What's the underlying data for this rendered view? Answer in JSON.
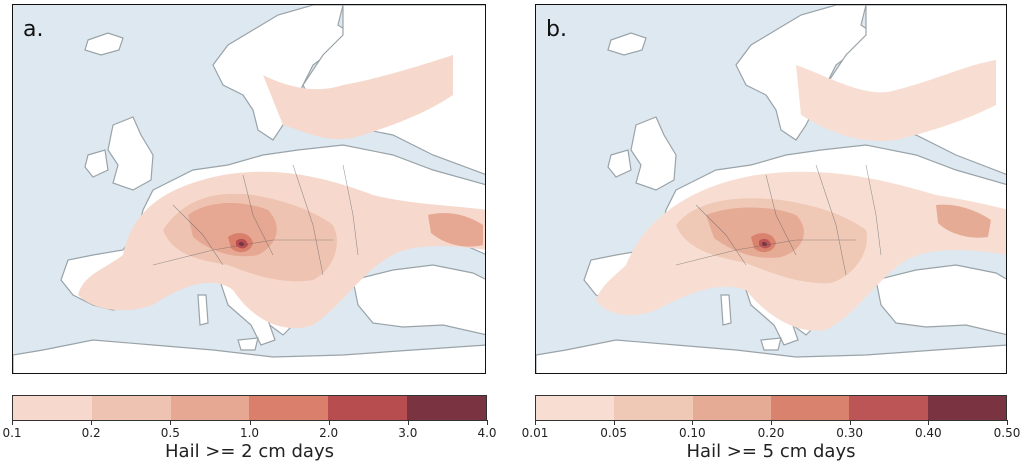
{
  "panels": [
    {
      "letter": "a.",
      "colorbar": {
        "ticks": [
          "0.1",
          "0.2",
          "0.5",
          "1.0",
          "2.0",
          "3.0",
          "4.0"
        ],
        "colors": [
          "#f6d9cc",
          "#efc3b1",
          "#e6a892",
          "#d97f6c",
          "#b84d50",
          "#7a3340"
        ],
        "label": "Hail >= 2 cm days"
      }
    },
    {
      "letter": "b.",
      "colorbar": {
        "ticks": [
          "0.01",
          "0.05",
          "0.10",
          "0.20",
          "0.30",
          "0.40",
          "0.50"
        ],
        "colors": [
          "#f8ded2",
          "#f0c8b6",
          "#e6ab95",
          "#d9836f",
          "#bb5556",
          "#7a3340"
        ],
        "label": "Hail >= 5 cm days"
      }
    }
  ],
  "map_colors": {
    "sea": "#dde8f0",
    "land": "#ffffff",
    "coast": "#9aa3a8",
    "border": "#555b60"
  }
}
